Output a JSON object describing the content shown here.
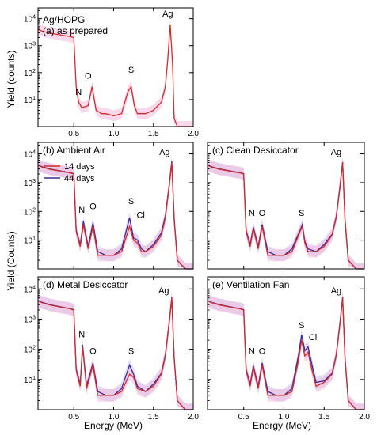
{
  "figure": {
    "sample_label": "Ag/HOPG",
    "y_axis_label": "Yield (counts)",
    "y_axis_label_lower": "Yield (Counts)",
    "x_axis_label": "Energy (MeV)"
  },
  "colors": {
    "series_14_days": "#d42a2a",
    "series_44_days": "#3a2a9a",
    "band_14_days": "#f3b8d8",
    "band_44_days": "#c9c4ec"
  },
  "chart_data": [
    {
      "id": "a",
      "type": "line",
      "title": "(a) as prepared",
      "xlim": [
        0.05,
        2.0
      ],
      "ylim_log10": [
        0,
        4.4
      ],
      "x_ticks": [
        "0.5",
        "1.0",
        "1.5",
        "2.0"
      ],
      "y_ticks": [
        "10^1",
        "10^2",
        "10^3",
        "10^4"
      ],
      "peak_labels": [
        {
          "text": "N",
          "energy": 0.56,
          "yield": 15
        },
        {
          "text": "O",
          "energy": 0.68,
          "yield": 60
        },
        {
          "text": "S",
          "energy": 1.22,
          "yield": 100
        },
        {
          "text": "Ag",
          "energy": 1.68,
          "yield": 12000
        }
      ],
      "series": [
        {
          "name": "as prepared",
          "color_key": "series_14_days",
          "x": [
            0.05,
            0.1,
            0.2,
            0.3,
            0.4,
            0.45,
            0.5,
            0.53,
            0.56,
            0.6,
            0.68,
            0.73,
            0.78,
            0.85,
            0.9,
            1.0,
            1.1,
            1.18,
            1.22,
            1.26,
            1.3,
            1.4,
            1.5,
            1.6,
            1.65,
            1.68,
            1.71,
            1.74,
            1.76,
            1.8,
            1.9,
            2.0
          ],
          "y": [
            4000,
            3500,
            2900,
            2600,
            2300,
            2200,
            2000,
            30,
            8,
            5,
            6,
            30,
            4,
            3,
            3,
            2.5,
            3,
            20,
            30,
            6,
            3,
            3,
            4,
            8,
            30,
            300,
            6000,
            200,
            2,
            1,
            1,
            1
          ]
        }
      ]
    },
    {
      "id": "b",
      "type": "line",
      "title": "(b) Ambient Air",
      "xlim": [
        0.05,
        2.0
      ],
      "ylim_log10": [
        0,
        4.4
      ],
      "legend": {
        "placement": "top-left",
        "entries": [
          "14 days",
          "44 days"
        ]
      },
      "peak_labels": [
        {
          "text": "N",
          "energy": 0.6,
          "yield": 90
        },
        {
          "text": "O",
          "energy": 0.74,
          "yield": 120
        },
        {
          "text": "S",
          "energy": 1.22,
          "yield": 180
        },
        {
          "text": "Cl",
          "energy": 1.34,
          "yield": 60
        },
        {
          "text": "Ag",
          "energy": 1.64,
          "yield": 9000
        }
      ],
      "series": [
        {
          "name": "14 days",
          "color_key": "series_14_days",
          "x": [
            0.05,
            0.1,
            0.2,
            0.3,
            0.4,
            0.45,
            0.5,
            0.53,
            0.58,
            0.62,
            0.68,
            0.74,
            0.8,
            0.9,
            1.0,
            1.1,
            1.2,
            1.25,
            1.3,
            1.35,
            1.4,
            1.5,
            1.6,
            1.65,
            1.7,
            1.73,
            1.76,
            1.8,
            1.9,
            2.0
          ],
          "y": [
            4000,
            3500,
            2900,
            2600,
            2300,
            2200,
            2000,
            20,
            6,
            35,
            5,
            30,
            3,
            3,
            3,
            4,
            30,
            10,
            8,
            4,
            4,
            6,
            15,
            60,
            800,
            5000,
            50,
            2,
            1,
            1
          ]
        },
        {
          "name": "44 days",
          "color_key": "series_44_days",
          "x": [
            0.05,
            0.1,
            0.2,
            0.3,
            0.4,
            0.45,
            0.5,
            0.53,
            0.58,
            0.62,
            0.68,
            0.74,
            0.8,
            0.9,
            1.0,
            1.1,
            1.2,
            1.25,
            1.3,
            1.35,
            1.4,
            1.5,
            1.6,
            1.65,
            1.7,
            1.73,
            1.76,
            1.8,
            1.9,
            2.0
          ],
          "y": [
            4100,
            3600,
            3000,
            2650,
            2350,
            2250,
            2050,
            22,
            7,
            45,
            6,
            40,
            4,
            3,
            3,
            5,
            60,
            12,
            10,
            5,
            4,
            7,
            18,
            70,
            900,
            5500,
            60,
            2,
            1,
            1
          ]
        }
      ]
    },
    {
      "id": "c",
      "type": "line",
      "title": "(c) Clean Desiccator",
      "xlim": [
        0.05,
        2.0
      ],
      "ylim_log10": [
        0,
        4.4
      ],
      "peak_labels": [
        {
          "text": "N",
          "energy": 0.6,
          "yield": 70
        },
        {
          "text": "O",
          "energy": 0.73,
          "yield": 70
        },
        {
          "text": "S",
          "energy": 1.22,
          "yield": 70
        },
        {
          "text": "Ag",
          "energy": 1.65,
          "yield": 9000
        }
      ],
      "series": [
        {
          "name": "14 days",
          "color_key": "series_14_days",
          "x": [
            0.05,
            0.1,
            0.2,
            0.3,
            0.4,
            0.45,
            0.5,
            0.53,
            0.58,
            0.62,
            0.68,
            0.73,
            0.8,
            0.9,
            1.0,
            1.1,
            1.2,
            1.23,
            1.26,
            1.3,
            1.4,
            1.5,
            1.6,
            1.65,
            1.7,
            1.73,
            1.76,
            1.8,
            1.9,
            2.0
          ],
          "y": [
            4000,
            3500,
            2900,
            2600,
            2300,
            2200,
            2000,
            20,
            6,
            25,
            5,
            30,
            3,
            3,
            3,
            4,
            20,
            30,
            8,
            4,
            4,
            6,
            15,
            60,
            800,
            5000,
            50,
            2,
            1,
            1
          ]
        },
        {
          "name": "44 days",
          "color_key": "series_44_days",
          "x": [
            0.05,
            0.1,
            0.2,
            0.3,
            0.4,
            0.45,
            0.5,
            0.53,
            0.58,
            0.62,
            0.68,
            0.73,
            0.8,
            0.9,
            1.0,
            1.1,
            1.2,
            1.23,
            1.26,
            1.3,
            1.4,
            1.5,
            1.6,
            1.65,
            1.7,
            1.73,
            1.76,
            1.8,
            1.9,
            2.0
          ],
          "y": [
            4100,
            3600,
            3000,
            2650,
            2350,
            2250,
            2050,
            22,
            7,
            28,
            6,
            35,
            4,
            3,
            3,
            5,
            22,
            35,
            9,
            5,
            4,
            7,
            16,
            65,
            850,
            5200,
            55,
            2,
            1,
            1
          ]
        }
      ]
    },
    {
      "id": "d",
      "type": "line",
      "title": "(d) Metal Desiccator",
      "xlim": [
        0.05,
        2.0
      ],
      "ylim_log10": [
        0,
        4.4
      ],
      "x_ticks": [
        "0.5",
        "1.0",
        "1.5",
        "2.0"
      ],
      "peak_labels": [
        {
          "text": "N",
          "energy": 0.6,
          "yield": 250
        },
        {
          "text": "O",
          "energy": 0.74,
          "yield": 70
        },
        {
          "text": "S",
          "energy": 1.22,
          "yield": 70
        },
        {
          "text": "Ag",
          "energy": 1.63,
          "yield": 7000
        }
      ],
      "series": [
        {
          "name": "14 days",
          "color_key": "series_14_days",
          "x": [
            0.05,
            0.1,
            0.2,
            0.3,
            0.4,
            0.45,
            0.5,
            0.53,
            0.58,
            0.61,
            0.66,
            0.74,
            0.8,
            0.9,
            1.0,
            1.1,
            1.2,
            1.25,
            1.3,
            1.4,
            1.5,
            1.6,
            1.65,
            1.7,
            1.73,
            1.76,
            1.8,
            1.9,
            2.0
          ],
          "y": [
            4000,
            3500,
            2900,
            2600,
            2300,
            2200,
            2000,
            20,
            6,
            120,
            5,
            30,
            3,
            3,
            3,
            4,
            15,
            12,
            5,
            4,
            6,
            15,
            60,
            800,
            5000,
            50,
            2,
            1,
            1
          ]
        },
        {
          "name": "44 days",
          "color_key": "series_44_days",
          "x": [
            0.05,
            0.1,
            0.2,
            0.3,
            0.4,
            0.45,
            0.5,
            0.53,
            0.58,
            0.61,
            0.66,
            0.74,
            0.8,
            0.9,
            1.0,
            1.1,
            1.2,
            1.25,
            1.3,
            1.4,
            1.5,
            1.6,
            1.65,
            1.7,
            1.73,
            1.76,
            1.8,
            1.9,
            2.0
          ],
          "y": [
            4100,
            3600,
            3000,
            2650,
            2350,
            2250,
            2050,
            22,
            7,
            140,
            6,
            35,
            4,
            3,
            3,
            5,
            30,
            15,
            6,
            4,
            7,
            16,
            65,
            850,
            5200,
            55,
            2,
            1,
            1
          ]
        }
      ]
    },
    {
      "id": "e",
      "type": "line",
      "title": "(e) Ventilation Fan",
      "xlim": [
        0.05,
        2.0
      ],
      "ylim_log10": [
        0,
        4.4
      ],
      "x_ticks": [
        "0.5",
        "1.0",
        "1.5",
        "2.0"
      ],
      "peak_labels": [
        {
          "text": "N",
          "energy": 0.6,
          "yield": 70
        },
        {
          "text": "O",
          "energy": 0.73,
          "yield": 70
        },
        {
          "text": "S",
          "energy": 1.22,
          "yield": 500
        },
        {
          "text": "Cl",
          "energy": 1.36,
          "yield": 200
        },
        {
          "text": "Ag",
          "energy": 1.65,
          "yield": 7000
        }
      ],
      "series": [
        {
          "name": "14 days",
          "color_key": "series_14_days",
          "x": [
            0.05,
            0.1,
            0.2,
            0.3,
            0.4,
            0.45,
            0.5,
            0.53,
            0.58,
            0.62,
            0.68,
            0.73,
            0.8,
            0.9,
            1.0,
            1.1,
            1.18,
            1.22,
            1.26,
            1.3,
            1.35,
            1.4,
            1.5,
            1.6,
            1.65,
            1.7,
            1.73,
            1.76,
            1.8,
            1.9,
            2.0
          ],
          "y": [
            4000,
            3500,
            2900,
            2600,
            2300,
            2200,
            2000,
            20,
            6,
            25,
            5,
            30,
            3,
            3,
            3,
            4,
            40,
            200,
            60,
            80,
            20,
            6,
            8,
            15,
            60,
            800,
            5000,
            50,
            2,
            1,
            1
          ]
        },
        {
          "name": "44 days",
          "color_key": "series_44_days",
          "x": [
            0.05,
            0.1,
            0.2,
            0.3,
            0.4,
            0.45,
            0.5,
            0.53,
            0.58,
            0.62,
            0.68,
            0.73,
            0.8,
            0.9,
            1.0,
            1.1,
            1.18,
            1.22,
            1.26,
            1.3,
            1.35,
            1.4,
            1.5,
            1.6,
            1.65,
            1.7,
            1.73,
            1.76,
            1.8,
            1.9,
            2.0
          ],
          "y": [
            4100,
            3600,
            3000,
            2650,
            2350,
            2250,
            2050,
            22,
            7,
            28,
            6,
            35,
            4,
            3,
            3,
            5,
            60,
            300,
            90,
            120,
            30,
            8,
            9,
            16,
            65,
            850,
            5200,
            55,
            2,
            1,
            1
          ]
        }
      ]
    }
  ]
}
